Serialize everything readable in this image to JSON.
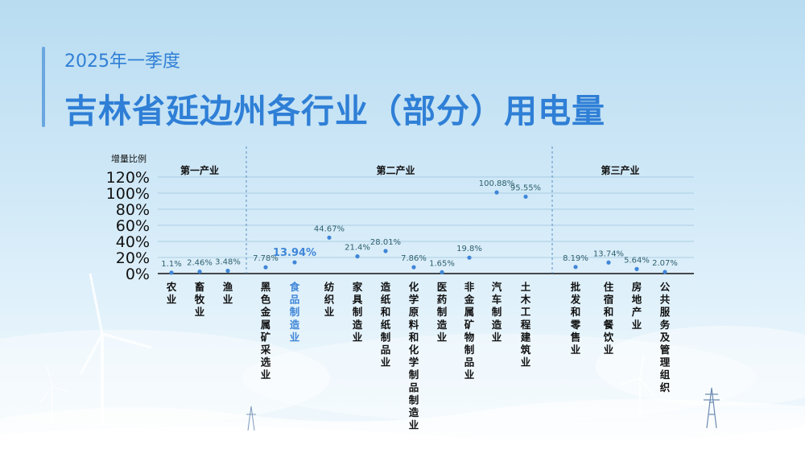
{
  "header": {
    "subtitle": "2025年一季度",
    "title": "吉林省延边州各行业（部分）用电量"
  },
  "colors": {
    "title": "#2f7fd6",
    "point": "#3f86d8",
    "value_label": "#2e5f6e",
    "highlight": "#3f86d8",
    "axis_text": "#111111"
  },
  "chart_data": {
    "type": "scatter",
    "ylabel": "增量比例",
    "ylim": [
      0,
      120
    ],
    "yticks": [
      "0%",
      "20%",
      "40%",
      "60%",
      "80%",
      "100%",
      "120%"
    ],
    "grid": true,
    "groups": [
      {
        "name": "第一产业",
        "start": 0,
        "end": 2
      },
      {
        "name": "第二产业",
        "start": 3,
        "end": 12
      },
      {
        "name": "第三产业",
        "start": 13,
        "end": 16
      }
    ],
    "categories": [
      "农业",
      "畜牧业",
      "渔业",
      "黑色金属矿采选业",
      "食品制造业",
      "纺织业",
      "家具制造业",
      "造纸和纸制品业",
      "化学原料和化学制品制造业",
      "医药制造业",
      "非金属矿物制品业",
      "汽车制造业",
      "土木工程建筑业",
      "批发和零售业",
      "住宿和餐饮业",
      "房地产业",
      "公共服务及管理组织"
    ],
    "values": [
      1.1,
      2.46,
      3.48,
      7.78,
      13.94,
      44.67,
      21.4,
      28.01,
      7.86,
      1.65,
      19.8,
      100.88,
      95.55,
      8.19,
      13.74,
      5.64,
      2.07
    ],
    "labels": [
      "1.1%",
      "2.46%",
      "3.48%",
      "7.78%",
      "13.94%",
      "44.67%",
      "21.4%",
      "28.01%",
      "7.86%",
      "1.65%",
      "19.8%",
      "100.88%",
      "95.55%",
      "8.19%",
      "13.74%",
      "5.64%",
      "2.07%"
    ],
    "highlight_index": 4
  }
}
